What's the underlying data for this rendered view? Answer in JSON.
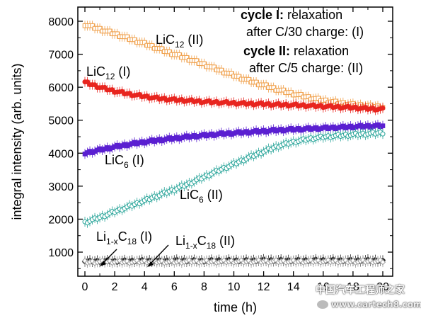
{
  "chart_data": {
    "type": "scatter",
    "xlabel": "time (h)",
    "ylabel": "integral intensity (arb. units)",
    "xlim": [
      0,
      20
    ],
    "ylim": [
      0,
      8500
    ],
    "x_ticks": [
      0,
      2,
      4,
      6,
      8,
      10,
      12,
      14,
      16,
      18,
      20
    ],
    "y_ticks": [
      1000,
      2000,
      3000,
      4000,
      5000,
      6000,
      7000,
      8000
    ],
    "grid": false,
    "error_bars": true,
    "series": [
      {
        "name": "LiC12 (II)",
        "label_main": "LiC",
        "label_sub": "12",
        "label_suffix": " (II)",
        "color": "#f0a04b",
        "marker": "open-square",
        "x": [
          0,
          1,
          2,
          3,
          4,
          5,
          6,
          7,
          8,
          9,
          10,
          11,
          12,
          13,
          14,
          15,
          16,
          17,
          18,
          19,
          20
        ],
        "y": [
          7900,
          7760,
          7620,
          7470,
          7320,
          7160,
          7000,
          6850,
          6690,
          6520,
          6360,
          6200,
          6060,
          5920,
          5800,
          5690,
          5600,
          5530,
          5470,
          5430,
          5400
        ]
      },
      {
        "name": "LiC12 (I)",
        "label_main": "LiC",
        "label_sub": "12",
        "label_suffix": " (I)",
        "color": "#e8251f",
        "marker": "filled-circle",
        "x": [
          0,
          1,
          2,
          3,
          4,
          5,
          6,
          7,
          8,
          9,
          10,
          11,
          12,
          13,
          14,
          15,
          16,
          17,
          18,
          19,
          20
        ],
        "y": [
          6150,
          6000,
          5880,
          5790,
          5720,
          5660,
          5620,
          5590,
          5560,
          5540,
          5520,
          5500,
          5490,
          5470,
          5460,
          5440,
          5420,
          5400,
          5380,
          5350,
          5330
        ]
      },
      {
        "name": "LiC6 (I)",
        "label_main": "LiC",
        "label_sub": "6",
        "label_suffix": " (I)",
        "color": "#5a1fd1",
        "marker": "filled-square",
        "x": [
          0,
          1,
          2,
          3,
          4,
          5,
          6,
          7,
          8,
          9,
          10,
          11,
          12,
          13,
          14,
          15,
          16,
          17,
          18,
          19,
          20
        ],
        "y": [
          4000,
          4100,
          4190,
          4270,
          4340,
          4400,
          4450,
          4500,
          4540,
          4580,
          4610,
          4640,
          4670,
          4700,
          4720,
          4740,
          4760,
          4780,
          4800,
          4820,
          4830
        ]
      },
      {
        "name": "LiC6 (II)",
        "label_main": "LiC",
        "label_sub": "6",
        "label_suffix": " (II)",
        "color": "#2aa59a",
        "marker": "open-circle",
        "x": [
          0,
          1,
          2,
          3,
          4,
          5,
          6,
          7,
          8,
          9,
          10,
          11,
          12,
          13,
          14,
          15,
          16,
          17,
          18,
          19,
          20
        ],
        "y": [
          1900,
          2050,
          2230,
          2390,
          2560,
          2730,
          2900,
          3080,
          3280,
          3480,
          3670,
          3870,
          4050,
          4220,
          4340,
          4430,
          4490,
          4530,
          4560,
          4590,
          4620
        ]
      },
      {
        "name": "Li1-xC18 (I)",
        "label_main": "Li",
        "label_sub": "1-x",
        "label_main2": "C",
        "label_sub2": "18",
        "label_suffix": " (I)",
        "color": "#222222",
        "marker": "filled-diamond",
        "x": [
          0,
          1,
          2,
          3,
          4,
          5,
          6,
          7,
          8,
          9,
          10,
          11,
          12,
          13,
          14,
          15,
          16,
          17,
          18,
          19,
          20
        ],
        "y": [
          720,
          730,
          725,
          735,
          740,
          730,
          745,
          740,
          735,
          750,
          745,
          740,
          755,
          750,
          745,
          750,
          755,
          750,
          745,
          750,
          745
        ]
      },
      {
        "name": "Li1-xC18 (II)",
        "label_main": "Li",
        "label_sub": "1-x",
        "label_main2": "C",
        "label_sub2": "18",
        "label_suffix": " (II)",
        "color": "#9a9a9a",
        "marker": "open-diamond",
        "x": [
          0,
          1,
          2,
          3,
          4,
          5,
          6,
          7,
          8,
          9,
          10,
          11,
          12,
          13,
          14,
          15,
          16,
          17,
          18,
          19,
          20
        ],
        "y": [
          700,
          705,
          710,
          700,
          715,
          710,
          705,
          720,
          715,
          710,
          720,
          715,
          725,
          720,
          715,
          720,
          725,
          720,
          715,
          725,
          720
        ]
      }
    ],
    "annotations": [
      {
        "bold": "cycle I:",
        "rest": " relaxation"
      },
      {
        "bold": "",
        "rest": "after C/30 charge: (I)"
      },
      {
        "bold": "cycle II:",
        "rest": " relaxation"
      },
      {
        "bold": "",
        "rest": "after C/5 charge: (II)"
      }
    ]
  },
  "watermark": {
    "line1": "中国汽车工程师之家",
    "line2": "www.cartech8.com",
    "line3": "新能源Leader"
  }
}
